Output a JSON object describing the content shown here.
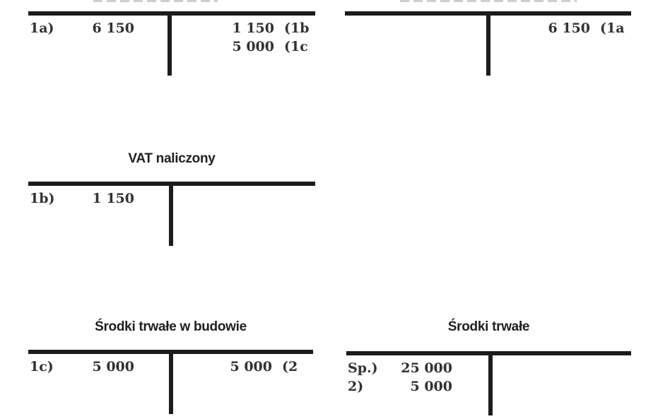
{
  "page": {
    "background": "#ffffff",
    "ink_color": "#1c1c1c",
    "text_color": "#323232"
  },
  "accounts": [
    {
      "name": "unknown-account-top-left",
      "title": "",
      "title_cropped": true,
      "debit": [
        {
          "label": "1a)",
          "amount": "6 150"
        }
      ],
      "credit": [
        {
          "amount": "1 150",
          "ref": "(1b"
        },
        {
          "amount": "5 000",
          "ref": "(1c"
        }
      ]
    },
    {
      "name": "unknown-account-top-right",
      "title": "",
      "title_cropped": true,
      "debit": [],
      "credit": [
        {
          "amount": "6 150",
          "ref": "(1a"
        }
      ]
    },
    {
      "name": "vat-naliczony",
      "title": "VAT naliczony",
      "title_cropped": false,
      "debit": [
        {
          "label": "1b)",
          "amount": "1 150"
        }
      ],
      "credit": []
    },
    {
      "name": "srodki-trwale-w-budowie",
      "title": "Środki trwałe w budowie",
      "title_cropped": false,
      "debit": [
        {
          "label": "1c)",
          "amount": "5 000"
        }
      ],
      "credit": [
        {
          "amount": "5 000",
          "ref": "(2"
        }
      ]
    },
    {
      "name": "srodki-trwale",
      "title": "Środki trwałe",
      "title_cropped": false,
      "debit": [
        {
          "label": "Sp.)",
          "amount": "25 000"
        },
        {
          "label": "2)",
          "amount": "5 000"
        }
      ],
      "credit": []
    }
  ]
}
